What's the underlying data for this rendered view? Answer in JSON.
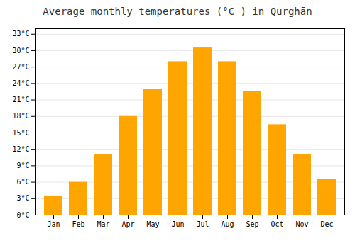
{
  "chart_data": {
    "type": "bar",
    "title": "Average monthly temperatures (°C ) in Qurghān",
    "categories": [
      "Jan",
      "Feb",
      "Mar",
      "Apr",
      "May",
      "Jun",
      "Jul",
      "Aug",
      "Sep",
      "Oct",
      "Nov",
      "Dec"
    ],
    "values": [
      3.5,
      6.0,
      11.0,
      18.0,
      23.0,
      28.0,
      30.5,
      28.0,
      22.5,
      16.5,
      11.0,
      6.5
    ],
    "color": "#FFA500",
    "ylim": [
      0,
      34
    ],
    "yticks": [
      {
        "value": 0,
        "label": "0°C"
      },
      {
        "value": 3,
        "label": "3°C"
      },
      {
        "value": 6,
        "label": "6°C"
      },
      {
        "value": 9,
        "label": "9°C"
      },
      {
        "value": 12,
        "label": "12°C"
      },
      {
        "value": 15,
        "label": "15°C"
      },
      {
        "value": 18,
        "label": "18°C"
      },
      {
        "value": 21,
        "label": "21°C"
      },
      {
        "value": 24,
        "label": "24°C"
      },
      {
        "value": 27,
        "label": "27°C"
      },
      {
        "value": 30,
        "label": "30°C"
      },
      {
        "value": 33,
        "label": "33°C"
      }
    ],
    "grid": true
  }
}
